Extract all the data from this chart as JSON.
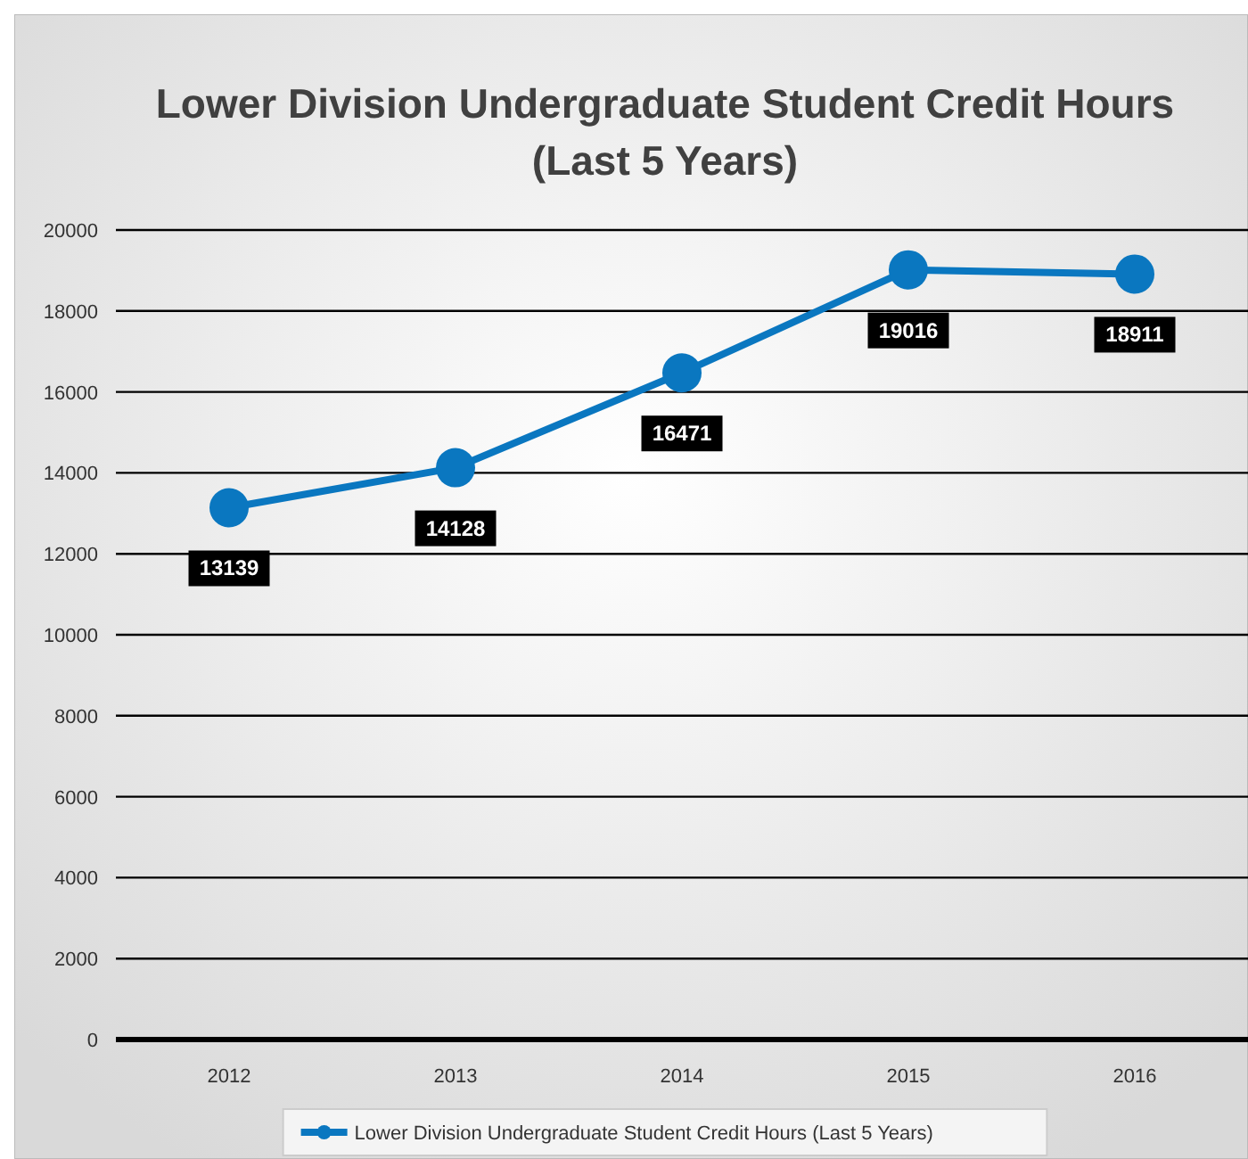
{
  "chart_data": {
    "type": "line",
    "title": "Lower Division Undergraduate Student Credit Hours (Last 5 Years)",
    "categories": [
      "2012",
      "2013",
      "2014",
      "2015",
      "2016"
    ],
    "series": [
      {
        "name": "Lower Division Undergraduate Student Credit Hours (Last 5 Years)",
        "color": "#0a77c0",
        "values": [
          13139,
          14128,
          16471,
          19016,
          18911
        ]
      }
    ],
    "ylim": [
      0,
      20000
    ],
    "yticks": [
      0,
      2000,
      4000,
      6000,
      8000,
      10000,
      12000,
      14000,
      16000,
      18000,
      20000
    ],
    "grid": "y",
    "legend": "bottom",
    "marker": "circle",
    "data_labels": true
  }
}
